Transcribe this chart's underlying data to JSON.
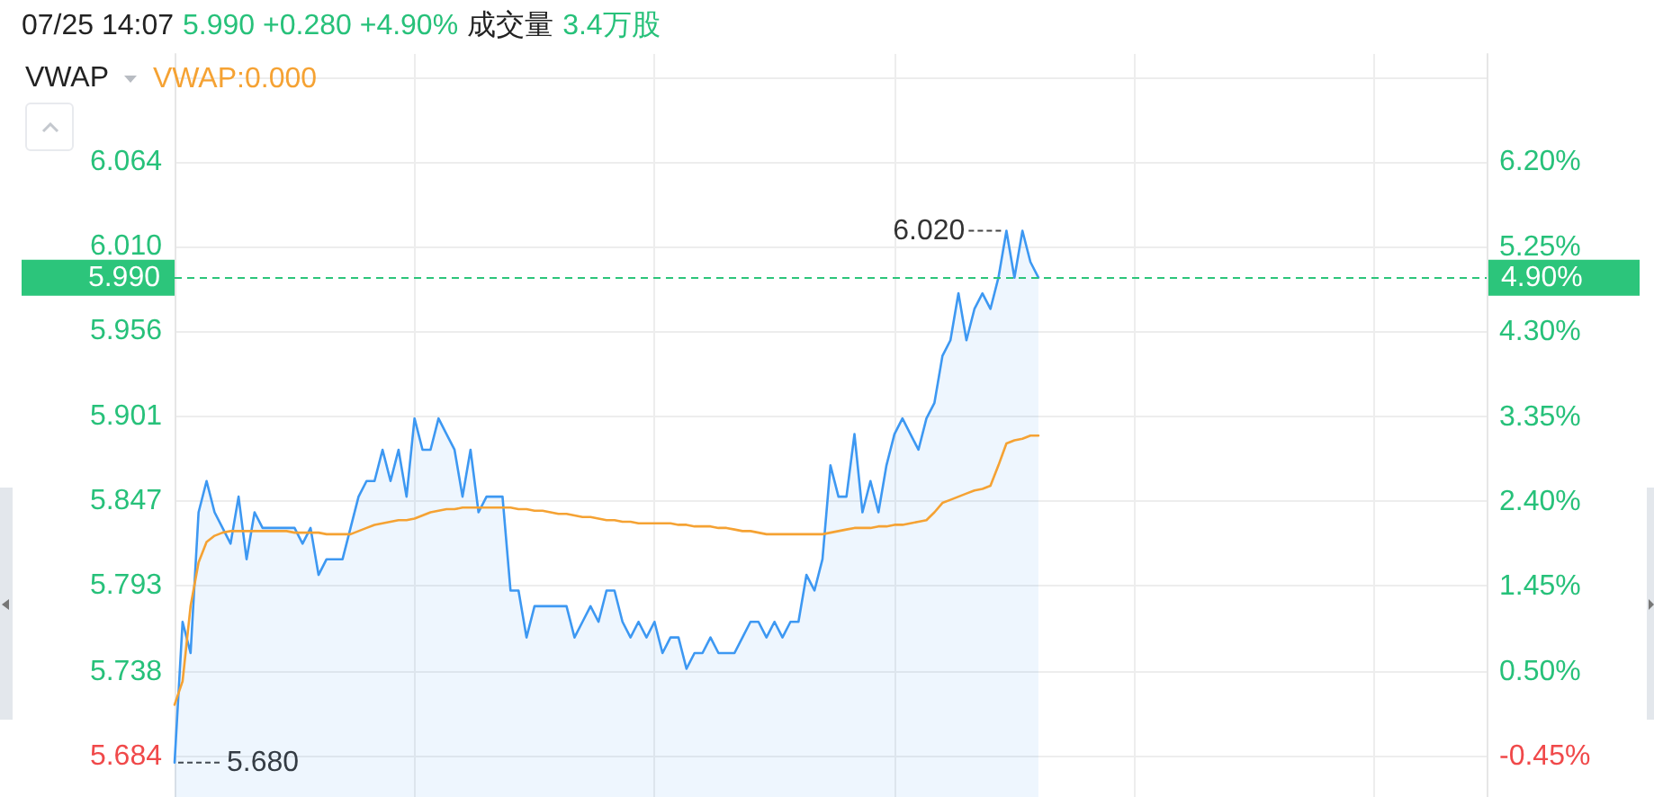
{
  "chart_data": {
    "type": "line",
    "title": "07/25 14:07",
    "annotations": [
      "5.990 +0.280 +4.90%",
      "成交量",
      "3.4万股",
      "VWAP",
      "6.020",
      "5.680",
      "4.90%"
    ],
    "categories": [
      null,
      null,
      null,
      null,
      null,
      null,
      null,
      null,
      null,
      null,
      null,
      null,
      null,
      null,
      null,
      null,
      null,
      null,
      null,
      null,
      null,
      null,
      null,
      null,
      null,
      null,
      null,
      null,
      null,
      null,
      null,
      null,
      null,
      null,
      null,
      null,
      null,
      null,
      null,
      null,
      null,
      null,
      null,
      null,
      null,
      null,
      null,
      null,
      null,
      null,
      null,
      null,
      null,
      null,
      null,
      null,
      null,
      null,
      null,
      null,
      null,
      null,
      null,
      null,
      null,
      null,
      null,
      null,
      null,
      null,
      null,
      null,
      null,
      null,
      null,
      null,
      null,
      null,
      null,
      null,
      null,
      null,
      null,
      null,
      null,
      null,
      null,
      null,
      null,
      null,
      null,
      null,
      null,
      null,
      null,
      null,
      null,
      null,
      null,
      null,
      null,
      null,
      null,
      null,
      null,
      null,
      null,
      null,
      null
    ],
    "series": [
      {
        "type": "area",
        "color": "#3d98f2",
        "values": [
          5.68,
          5.77,
          5.75,
          5.84,
          5.86,
          5.84,
          5.83,
          5.82,
          5.85,
          5.81,
          5.84,
          5.83,
          5.83,
          5.83,
          5.83,
          5.83,
          5.82,
          5.83,
          5.8,
          5.81,
          5.81,
          5.81,
          5.83,
          5.85,
          5.86,
          5.86,
          5.88,
          5.86,
          5.88,
          5.85,
          5.9,
          5.88,
          5.88,
          5.9,
          5.89,
          5.88,
          5.85,
          5.88,
          5.84,
          5.85,
          5.85,
          5.85,
          5.79,
          5.79,
          5.76,
          5.78,
          5.78,
          5.78,
          5.78,
          5.78,
          5.76,
          5.77,
          5.78,
          5.77,
          5.79,
          5.79,
          5.77,
          5.76,
          5.77,
          5.76,
          5.77,
          5.75,
          5.76,
          5.76,
          5.74,
          5.75,
          5.75,
          5.76,
          5.75,
          5.75,
          5.75,
          5.76,
          5.77,
          5.77,
          5.76,
          5.77,
          5.76,
          5.77,
          5.77,
          5.8,
          5.79,
          5.81,
          5.87,
          5.85,
          5.85,
          5.89,
          5.84,
          5.86,
          5.84,
          5.87,
          5.89,
          5.9,
          5.89,
          5.88,
          5.9,
          5.91,
          5.94,
          5.95,
          5.98,
          5.95,
          5.97,
          5.98,
          5.97,
          5.99,
          6.02,
          5.99,
          6.02,
          6.0,
          5.99
        ]
      },
      {
        "type": "line",
        "name": "VWAP:0.000",
        "color": "#f5a233",
        "values": [
          5.717,
          5.732,
          5.78,
          5.808,
          5.821,
          5.825,
          5.827,
          5.828,
          5.828,
          5.828,
          5.828,
          5.828,
          5.828,
          5.828,
          5.828,
          5.827,
          5.827,
          5.827,
          5.827,
          5.826,
          5.826,
          5.826,
          5.826,
          5.828,
          5.83,
          5.832,
          5.833,
          5.834,
          5.835,
          5.835,
          5.836,
          5.838,
          5.84,
          5.841,
          5.842,
          5.842,
          5.843,
          5.843,
          5.843,
          5.843,
          5.843,
          5.843,
          5.843,
          5.842,
          5.842,
          5.841,
          5.841,
          5.84,
          5.839,
          5.839,
          5.838,
          5.837,
          5.837,
          5.836,
          5.835,
          5.835,
          5.834,
          5.834,
          5.833,
          5.833,
          5.833,
          5.833,
          5.833,
          5.832,
          5.832,
          5.831,
          5.831,
          5.831,
          5.83,
          5.83,
          5.829,
          5.828,
          5.828,
          5.827,
          5.826,
          5.826,
          5.826,
          5.826,
          5.826,
          5.826,
          5.826,
          5.826,
          5.827,
          5.828,
          5.829,
          5.83,
          5.83,
          5.83,
          5.831,
          5.831,
          5.832,
          5.832,
          5.833,
          5.834,
          5.835,
          5.84,
          5.846,
          5.848,
          5.85,
          5.852,
          5.854,
          5.855,
          5.857,
          5.87,
          5.884,
          5.886,
          5.887,
          5.889,
          5.889
        ]
      }
    ],
    "ylim": [
      5.658,
      6.133
    ],
    "yticks": [
      5.684,
      5.738,
      5.793,
      5.847,
      5.901,
      5.956,
      {
        "value": 6.01,
        "label": "6.010"
      },
      6.064,
      {
        "value": 6.118,
        "label": null
      }
    ],
    "y2lim": [
      -0.898,
      7.407
    ],
    "y2ticks": [
      {
        "value": -0.45,
        "label": "-0.45%"
      },
      {
        "value": 0.5,
        "label": "0.50%"
      },
      {
        "value": 1.45,
        "label": "1.45%"
      },
      {
        "value": 2.4,
        "label": "2.40%"
      },
      {
        "value": 3.35,
        "label": "3.35%"
      },
      {
        "value": 4.3,
        "label": "4.30%"
      },
      {
        "value": 5.25,
        "label": "5.25%"
      },
      {
        "value": 6.2,
        "label": "6.20%"
      }
    ],
    "ref_lines": [
      {
        "axis": "y",
        "value": 5.99,
        "label": "5.990",
        "color": "#2cc57b",
        "line_style": "dashed"
      }
    ],
    "grid": true,
    "legend": "top left",
    "marker": "none"
  }
}
